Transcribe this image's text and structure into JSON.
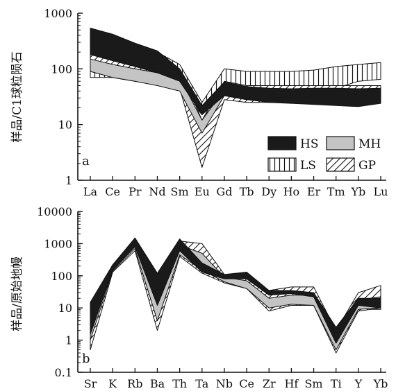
{
  "patterns": {
    "HS": "solid-dark",
    "MH": "solid-light-gray",
    "LS": "vertical-hatch",
    "GP": "diagonal-hatch"
  },
  "colors": {
    "HS": "#1a1a1a",
    "MH": "#c4c4c4",
    "outline": "#111111"
  },
  "chart_data": [
    {
      "type": "area",
      "panel_label": "a",
      "ylabel": "样品/C1球粒陨石",
      "yscale": "log",
      "ylim": [
        1,
        1000
      ],
      "yticks": [
        "1",
        "10",
        "100",
        "1000"
      ],
      "categories": [
        "La",
        "Ce",
        "Pr",
        "Nd",
        "Sm",
        "Eu",
        "Gd",
        "Tb",
        "Dy",
        "Ho",
        "Er",
        "Tm",
        "Yb",
        "Lu"
      ],
      "legend": [
        "HS",
        "MH",
        "LS",
        "GP"
      ],
      "legend_position": "lower-right",
      "series": [
        {
          "name": "LS",
          "low": [
            70,
            70,
            60,
            55,
            45,
            15,
            38,
            38,
            38,
            38,
            38,
            45,
            60,
            65
          ],
          "high": [
            520,
            400,
            280,
            200,
            120,
            25,
            100,
            90,
            90,
            90,
            95,
            110,
            120,
            130
          ]
        },
        {
          "name": "GP",
          "low": [
            90,
            70,
            60,
            55,
            45,
            1.7,
            28,
            25,
            25,
            25,
            25,
            25,
            25,
            25
          ],
          "high": [
            300,
            230,
            190,
            150,
            100,
            12,
            60,
            50,
            50,
            50,
            50,
            50,
            50,
            50
          ]
        },
        {
          "name": "MH",
          "low": [
            90,
            70,
            60,
            50,
            40,
            7,
            33,
            28,
            28,
            28,
            28,
            28,
            28,
            28
          ],
          "high": [
            150,
            120,
            100,
            85,
            70,
            12,
            42,
            38,
            38,
            38,
            38,
            38,
            38,
            38
          ]
        },
        {
          "name": "HS",
          "low": [
            180,
            140,
            110,
            85,
            60,
            15,
            33,
            28,
            25,
            24,
            23,
            22,
            21,
            24
          ],
          "high": [
            540,
            420,
            290,
            210,
            100,
            22,
            58,
            48,
            45,
            44,
            45,
            45,
            44,
            45
          ]
        }
      ]
    },
    {
      "type": "area",
      "panel_label": "b",
      "ylabel": "样品/原始地幔",
      "yscale": "log",
      "ylim": [
        0.1,
        10000
      ],
      "yticks": [
        "0.1",
        "1",
        "10",
        "100",
        "1000",
        "10000"
      ],
      "categories": [
        "Sr",
        "K",
        "Rb",
        "Ba",
        "Th",
        "Ta",
        "Nb",
        "Ce",
        "Zr",
        "Hf",
        "Sm",
        "Ti",
        "Y",
        "Yb"
      ],
      "series": [
        {
          "name": "LS",
          "low": [
            2,
            150,
            700,
            10,
            500,
            200,
            70,
            40,
            10,
            14,
            13,
            0.6,
            9,
            9
          ],
          "high": [
            12,
            200,
            1200,
            40,
            1100,
            700,
            100,
            80,
            20,
            24,
            25,
            1.5,
            20,
            28
          ]
        },
        {
          "name": "GP",
          "low": [
            0.5,
            130,
            600,
            2,
            400,
            120,
            60,
            40,
            8,
            12,
            12,
            0.4,
            8,
            10
          ],
          "high": [
            10,
            220,
            1400,
            60,
            1200,
            1000,
            110,
            90,
            35,
            45,
            45,
            2,
            30,
            50
          ]
        },
        {
          "name": "MH",
          "low": [
            1,
            140,
            700,
            4,
            450,
            150,
            65,
            40,
            10,
            13,
            12,
            0.5,
            9,
            10
          ],
          "high": [
            6,
            200,
            1100,
            25,
            900,
            500,
            90,
            70,
            20,
            25,
            25,
            1.2,
            18,
            22
          ]
        },
        {
          "name": "HS",
          "low": [
            1.5,
            150,
            800,
            12,
            600,
            130,
            80,
            80,
            25,
            28,
            22,
            0.8,
            12,
            10
          ],
          "high": [
            15,
            220,
            1500,
            120,
            1400,
            250,
            110,
            130,
            35,
            35,
            30,
            2.5,
            20,
            20
          ]
        }
      ]
    }
  ]
}
